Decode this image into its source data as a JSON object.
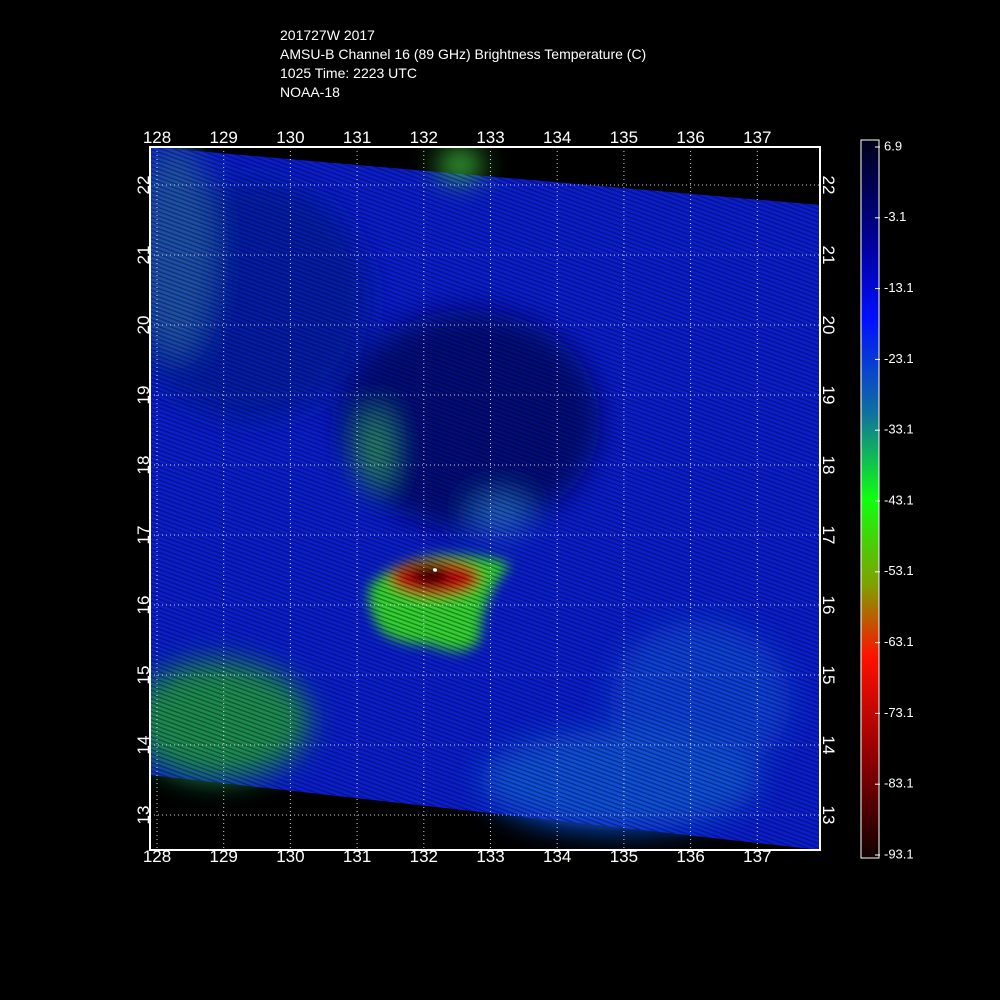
{
  "header": {
    "lines": [
      "201727W 2017",
      "AMSU-B Channel 16 (89 GHz) Brightness Temperature (C)",
      "1025 Time: 2223 UTC",
      "NOAA-18"
    ]
  },
  "map": {
    "lon_ticks": [
      128,
      129,
      130,
      131,
      132,
      133,
      134,
      135,
      136,
      137
    ],
    "lat_ticks": [
      13,
      14,
      15,
      16,
      17,
      18,
      19,
      20,
      21,
      22
    ]
  },
  "colorbar": {
    "labels": [
      6.9,
      -3.1,
      -13.1,
      -23.1,
      -33.1,
      -43.1,
      -53.1,
      -63.1,
      -73.1,
      -83.1,
      -93.1
    ]
  }
}
